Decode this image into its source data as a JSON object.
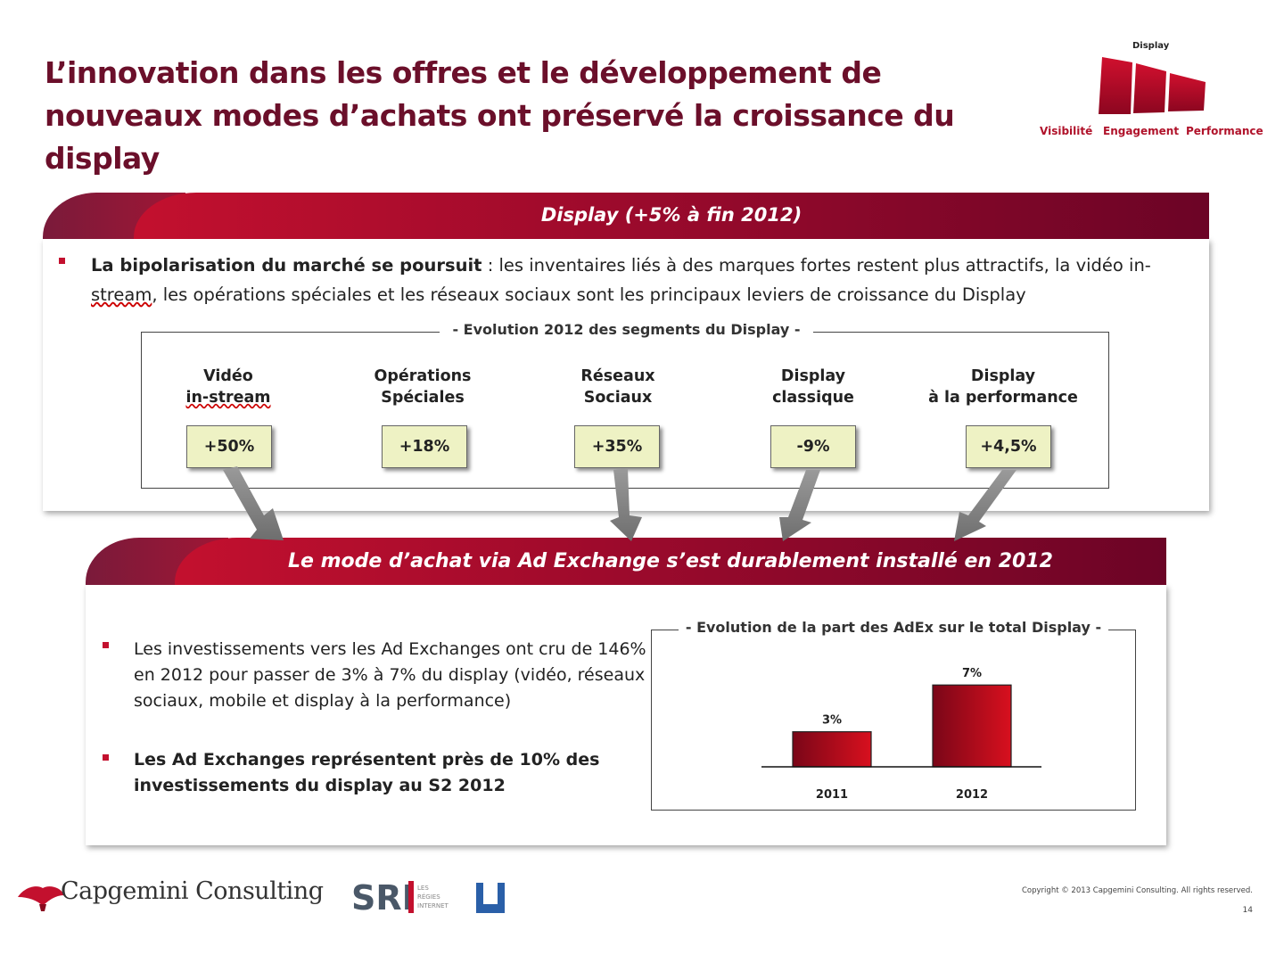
{
  "title": "L’innovation dans les offres et le développement de nouveaux modes d’achats ont préservé la croissance du display",
  "logo": {
    "top_label": "Display",
    "labels": [
      "Visibilité",
      "Engagement",
      "Performance"
    ],
    "color": "#b0122a"
  },
  "section1": {
    "band_title": "Display  (+5% à fin 2012)",
    "bullet_bold": "La bipolarisation du marché se poursuit",
    "bullet_text_1": " : les inventaires  liés à des marques fortes restent plus attractifs, la vidéo in-",
    "bullet_text_stream": "stream",
    "bullet_text_2": ", les opérations  spéciales  et les réseaux sociaux sont les principaux  leviers de croissance  du Display",
    "segments_title": "- Evolution  2012 des segments du Display -",
    "segments": [
      {
        "line1": "Vidéo",
        "line2": "in-stream",
        "value": "+50%"
      },
      {
        "line1": "Opérations",
        "line2": "Spéciales",
        "value": "+18%"
      },
      {
        "line1": "Réseaux",
        "line2": "Sociaux",
        "value": "+35%"
      },
      {
        "line1": "Display",
        "line2": "classique",
        "value": "-9%"
      },
      {
        "line1": "Display",
        "line2": "à la performance",
        "value": "+4,5%"
      }
    ]
  },
  "section2": {
    "band_title": "Le mode d’achat  via Ad Exchange  s’est durablement  installé en 2012",
    "bullet1": "Les  investissements vers les Ad Exchanges ont cru de 146% en 2012 pour passer de 3% à 7% du display (vidéo, réseaux sociaux, mobile et display à la performance)",
    "bullet2": "Les Ad Exchanges  représentent près de 10% des investissements du display  au S2  2012"
  },
  "chart_data": {
    "type": "bar",
    "title": "- Evolution  de la part des AdEx sur le total Display -",
    "categories": [
      "2011",
      "2012"
    ],
    "values": [
      3,
      7
    ],
    "data_labels": [
      "3%",
      "7%"
    ],
    "ylim": [
      0,
      9
    ],
    "grid": false,
    "bar_color": "#c3102e"
  },
  "footer": {
    "capgemini": "Capgemini Consulting",
    "sri": "SRI",
    "sri_sub": [
      "LES",
      "RÉGIES",
      "INTERNET"
    ],
    "copyright": "Copyright © 2013 Capgemini Consulting. All rights reserved.",
    "page": "14"
  }
}
